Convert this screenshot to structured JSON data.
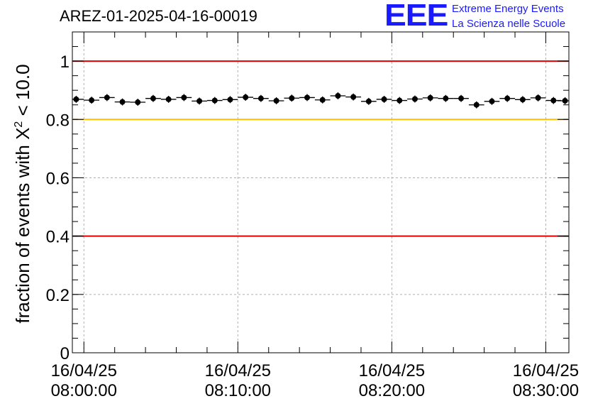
{
  "header": {
    "title": "AREZ-01-2025-04-16-00019",
    "logo_mark": "EEE",
    "logo_line1": "Extreme Energy Events",
    "logo_line2": "La Scienza nelle Scuole"
  },
  "colors": {
    "threshold_red": "#e00000",
    "threshold_yellow": "#ffc000",
    "logo_blue": "#1a1aff",
    "grid": "#b0b0b0"
  },
  "chart_data": {
    "type": "scatter",
    "title": "AREZ-01-2025-04-16-00019",
    "xlabel": "",
    "ylabel_main": "fraction of events with Χ",
    "ylabel_sup": "2",
    "ylabel_tail": " < 10.0",
    "ylim": [
      0,
      1.1
    ],
    "yticks": [
      0,
      0.2,
      0.4,
      0.6,
      0.8,
      1
    ],
    "ytick_labels": [
      "0",
      "0.2",
      "0.4",
      "0.6",
      "0.8",
      "1"
    ],
    "xlim_minutes": [
      -0.75,
      31.5
    ],
    "xticks_minutes": [
      0,
      10,
      20,
      30
    ],
    "xtick_labels": [
      {
        "date": "16/04/25",
        "time": "08:00:00"
      },
      {
        "date": "16/04/25",
        "time": "08:10:00"
      },
      {
        "date": "16/04/25",
        "time": "08:20:00"
      },
      {
        "date": "16/04/25",
        "time": "08:30:00"
      }
    ],
    "grid": true,
    "series": [
      {
        "name": "fraction",
        "bin_width_minutes": 1,
        "x_minutes": [
          -0.5,
          0.5,
          1.5,
          2.5,
          3.5,
          4.5,
          5.5,
          6.5,
          7.5,
          8.5,
          9.5,
          10.5,
          11.5,
          12.5,
          13.5,
          14.5,
          15.5,
          16.5,
          17.5,
          18.5,
          19.5,
          20.5,
          21.5,
          22.5,
          23.5,
          24.5,
          25.5,
          26.5,
          27.5,
          28.5,
          29.5,
          30.5,
          31.25
        ],
        "y": [
          0.869,
          0.866,
          0.875,
          0.86,
          0.859,
          0.872,
          0.869,
          0.875,
          0.863,
          0.865,
          0.868,
          0.876,
          0.872,
          0.864,
          0.873,
          0.875,
          0.867,
          0.881,
          0.877,
          0.862,
          0.869,
          0.865,
          0.87,
          0.874,
          0.872,
          0.872,
          0.85,
          0.862,
          0.872,
          0.868,
          0.874,
          0.865,
          0.864
        ]
      }
    ],
    "threshold_lines": [
      {
        "value": 1.0,
        "color": "red"
      },
      {
        "value": 0.8,
        "color": "yellow"
      },
      {
        "value": 0.4,
        "color": "red"
      }
    ]
  }
}
